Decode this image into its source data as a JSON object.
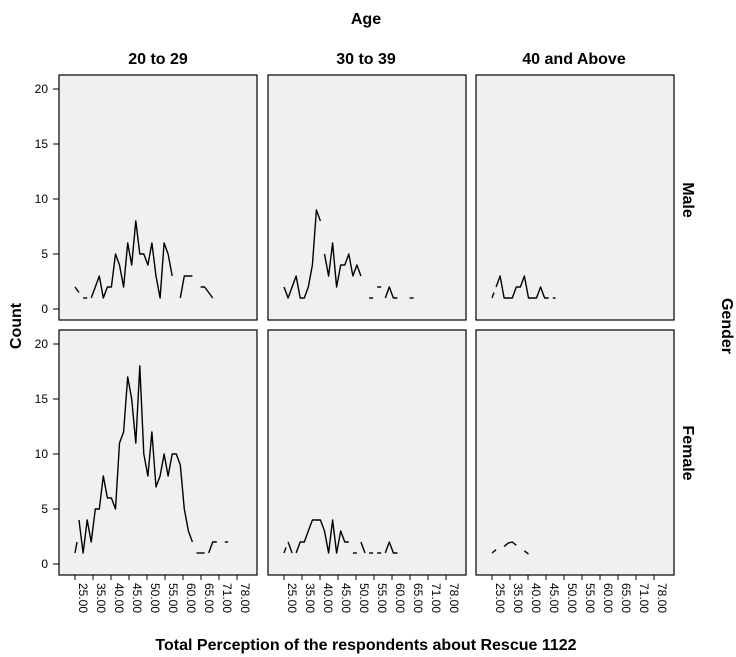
{
  "chart_data": {
    "type": "line",
    "column_var": "Age",
    "row_var": "Gender",
    "columns": [
      "20 to 29",
      "30 to 39",
      "40 and Above"
    ],
    "rows": [
      "Male",
      "Female"
    ],
    "xlabel": "Total Perception of the respondents about Rescue 1122",
    "ylabel": "Count",
    "x_ticks": [
      "25.00",
      "35.00",
      "40.00",
      "45.00",
      "50.00",
      "55.00",
      "60.00",
      "65.00",
      "71.00",
      "78.00"
    ],
    "y_ticks": [
      0,
      5,
      10,
      15,
      20
    ],
    "ylim": [
      0,
      20
    ],
    "panels": [
      {
        "row": "Male",
        "column": "20 to 29",
        "segments": [
          [
            [
              25,
              2
            ],
            [
              26,
              1.5
            ]
          ],
          [
            [
              27,
              1
            ],
            [
              28,
              1
            ]
          ],
          [
            [
              29,
              1
            ],
            [
              30,
              2
            ],
            [
              31,
              3
            ],
            [
              32,
              1
            ],
            [
              33,
              2
            ],
            [
              34,
              2
            ],
            [
              35,
              5
            ],
            [
              36,
              4
            ],
            [
              37,
              2
            ],
            [
              38,
              6
            ],
            [
              39,
              4
            ],
            [
              40,
              8
            ],
            [
              41,
              5
            ],
            [
              42,
              5
            ],
            [
              43,
              4
            ],
            [
              44,
              6
            ],
            [
              45,
              3
            ],
            [
              46,
              1
            ],
            [
              47,
              6
            ],
            [
              48,
              5
            ],
            [
              49,
              3
            ]
          ],
          [
            [
              51,
              1
            ],
            [
              52,
              3
            ],
            [
              53,
              3
            ],
            [
              54,
              3
            ]
          ],
          [
            [
              56,
              2
            ],
            [
              57,
              2
            ],
            [
              58,
              1.5
            ],
            [
              59,
              1
            ]
          ]
        ]
      },
      {
        "row": "Male",
        "column": "30 to 39",
        "segments": [
          [
            [
              25,
              2
            ],
            [
              26,
              1
            ],
            [
              27,
              2
            ],
            [
              28,
              3
            ],
            [
              29,
              1
            ],
            [
              30,
              1
            ],
            [
              31,
              2
            ],
            [
              32,
              4
            ],
            [
              33,
              9
            ],
            [
              34,
              8
            ]
          ],
          [
            [
              35,
              5
            ],
            [
              36,
              3
            ],
            [
              37,
              6
            ],
            [
              38,
              2
            ],
            [
              39,
              4
            ],
            [
              40,
              4
            ],
            [
              41,
              5
            ],
            [
              42,
              3
            ],
            [
              43,
              4
            ],
            [
              44,
              3
            ]
          ],
          [
            [
              46,
              1
            ],
            [
              47,
              1
            ]
          ],
          [
            [
              48,
              2
            ],
            [
              49,
              2
            ]
          ],
          [
            [
              50,
              1
            ],
            [
              51,
              2
            ],
            [
              52,
              1
            ],
            [
              53,
              1
            ]
          ],
          [
            [
              56,
              1
            ],
            [
              57,
              1
            ]
          ]
        ]
      },
      {
        "row": "Male",
        "column": "40 and Above",
        "segments": [
          [
            [
              25,
              1
            ],
            [
              25.5,
              1.5
            ]
          ],
          [
            [
              26,
              2
            ],
            [
              27,
              3
            ],
            [
              28,
              1
            ],
            [
              29,
              1
            ],
            [
              30,
              1
            ],
            [
              31,
              2
            ],
            [
              32,
              2
            ],
            [
              33,
              3
            ],
            [
              34,
              1
            ],
            [
              35,
              1
            ],
            [
              36,
              1
            ],
            [
              37,
              2
            ],
            [
              38,
              1
            ],
            [
              39,
              1
            ]
          ],
          [
            [
              40,
              1
            ],
            [
              40.7,
              1
            ]
          ]
        ]
      },
      {
        "row": "Female",
        "column": "20 to 29",
        "segments": [
          [
            [
              25,
              1
            ],
            [
              25.5,
              2
            ]
          ],
          [
            [
              26,
              4
            ],
            [
              27,
              1
            ],
            [
              28,
              4
            ],
            [
              29,
              2
            ],
            [
              30,
              5
            ],
            [
              31,
              5
            ],
            [
              32,
              8
            ],
            [
              33,
              6
            ],
            [
              34,
              6
            ],
            [
              35,
              5
            ],
            [
              36,
              11
            ],
            [
              37,
              12
            ],
            [
              38,
              17
            ],
            [
              39,
              15
            ],
            [
              40,
              11
            ],
            [
              41,
              18
            ],
            [
              42,
              10
            ],
            [
              43,
              8
            ],
            [
              44,
              12
            ],
            [
              45,
              7
            ],
            [
              46,
              8
            ],
            [
              47,
              10
            ],
            [
              48,
              8
            ],
            [
              49,
              10
            ],
            [
              50,
              10
            ],
            [
              51,
              9
            ],
            [
              52,
              5
            ],
            [
              53,
              3
            ],
            [
              54,
              2
            ]
          ],
          [
            [
              55,
              1
            ],
            [
              56,
              1
            ],
            [
              57,
              1
            ]
          ],
          [
            [
              58,
              1
            ],
            [
              59,
              2
            ],
            [
              60,
              2
            ]
          ],
          [
            [
              62,
              2
            ],
            [
              62.8,
              2
            ]
          ]
        ]
      },
      {
        "row": "Female",
        "column": "30 to 39",
        "segments": [
          [
            [
              25,
              1
            ],
            [
              25.5,
              1.5
            ]
          ],
          [
            [
              26,
              2
            ],
            [
              27,
              1
            ]
          ],
          [
            [
              28,
              1
            ],
            [
              29,
              2
            ],
            [
              30,
              2
            ],
            [
              31,
              3
            ],
            [
              32,
              4
            ],
            [
              33,
              4
            ],
            [
              34,
              4
            ],
            [
              35,
              3
            ],
            [
              36,
              1
            ],
            [
              37,
              4
            ],
            [
              38,
              1
            ],
            [
              39,
              3
            ],
            [
              40,
              2
            ],
            [
              41,
              2
            ]
          ],
          [
            [
              42,
              1
            ],
            [
              43,
              1
            ]
          ],
          [
            [
              44,
              2
            ],
            [
              45,
              1
            ]
          ],
          [
            [
              46,
              1
            ],
            [
              47,
              1
            ]
          ],
          [
            [
              48,
              1
            ],
            [
              49,
              1
            ]
          ],
          [
            [
              50,
              1
            ],
            [
              51,
              2
            ],
            [
              52,
              1
            ],
            [
              53,
              1
            ]
          ]
        ]
      },
      {
        "row": "Female",
        "column": "40 and Above",
        "segments": [
          [
            [
              25,
              1
            ],
            [
              26,
              1.3
            ]
          ],
          [
            [
              28,
              1.6
            ],
            [
              29,
              1.9
            ],
            [
              30,
              2
            ],
            [
              31,
              1.7
            ]
          ],
          [
            [
              33,
              1.2
            ],
            [
              34,
              0.9
            ]
          ]
        ]
      }
    ]
  }
}
